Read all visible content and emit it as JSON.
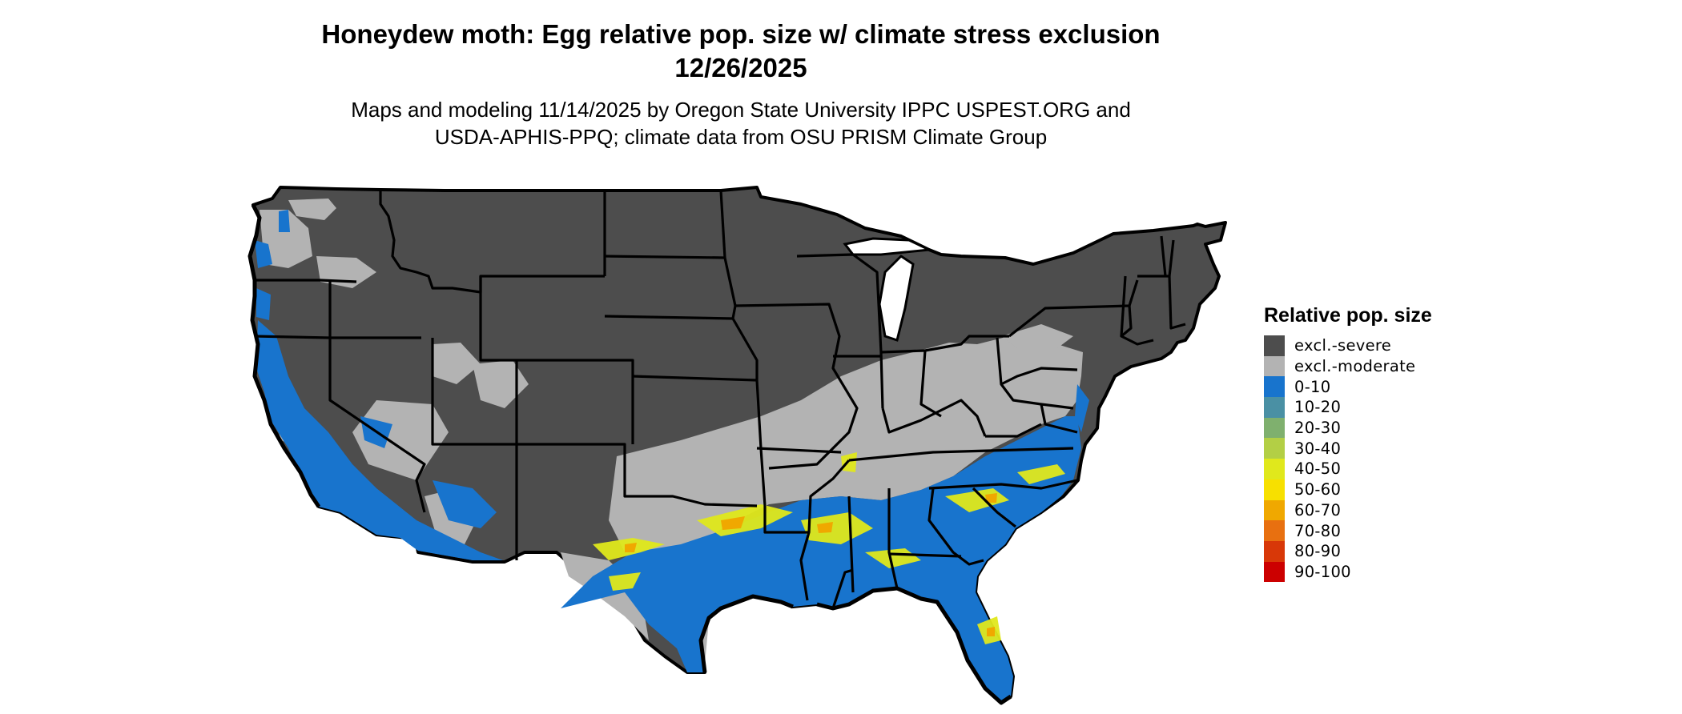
{
  "title_line1": "Honeydew moth: Egg relative pop. size w/ climate stress exclusion",
  "title_line2": "12/26/2025",
  "subtitle_line1": "Maps and modeling 11/14/2025 by Oregon State University IPPC USPEST.ORG and",
  "subtitle_line2": "USDA-APHIS-PPQ; climate data from OSU PRISM Climate Group",
  "legend": {
    "title": "Relative pop. size",
    "items": [
      {
        "label": "excl.-severe",
        "color": "#4d4d4d"
      },
      {
        "label": "excl.-moderate",
        "color": "#b3b3b3"
      },
      {
        "label": "0-10",
        "color": "#1874cd"
      },
      {
        "label": "10-20",
        "color": "#4a90a4"
      },
      {
        "label": "20-30",
        "color": "#7fb06e"
      },
      {
        "label": "30-40",
        "color": "#b3cf45"
      },
      {
        "label": "40-50",
        "color": "#e0e81c"
      },
      {
        "label": "50-60",
        "color": "#f7e000"
      },
      {
        "label": "60-70",
        "color": "#f0a800"
      },
      {
        "label": "70-80",
        "color": "#e87010"
      },
      {
        "label": "80-90",
        "color": "#d83808"
      },
      {
        "label": "90-100",
        "color": "#cc0000"
      }
    ]
  },
  "map": {
    "region": "Contiguous United States",
    "colors": {
      "severe": "#4d4d4d",
      "moderate": "#b3b3b3",
      "low": "#1874cd",
      "mid": "#e0e81c",
      "high": "#f0a800",
      "border": "#000000"
    }
  }
}
